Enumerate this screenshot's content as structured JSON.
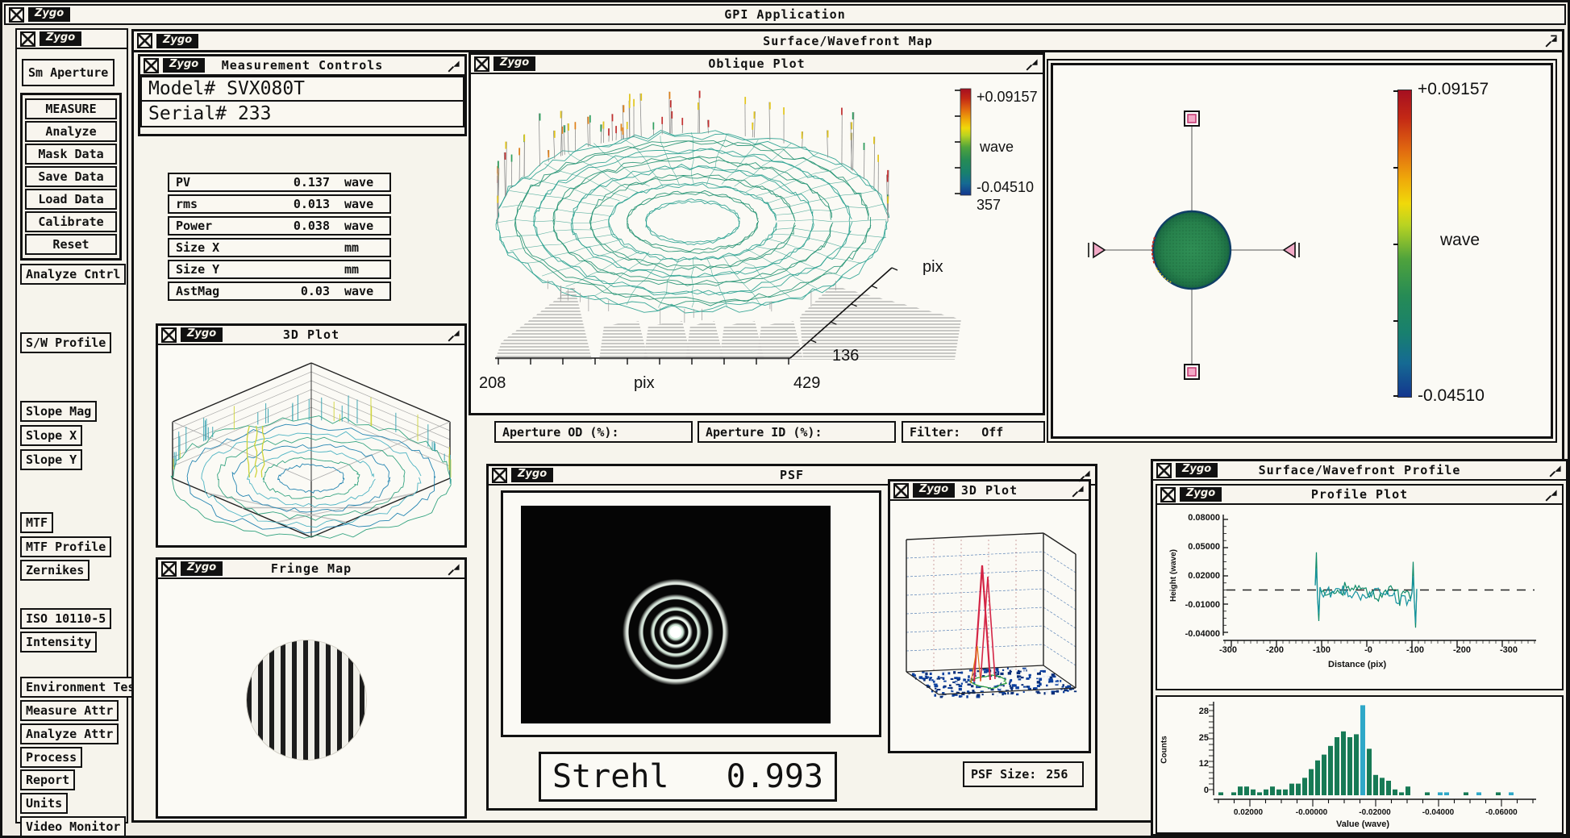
{
  "app": {
    "title": "GPI Application",
    "logo_text": "Zygo"
  },
  "sidebar": {
    "top_button": "Sm Aperture",
    "measure_group": [
      "MEASURE",
      "Analyze",
      "Mask Data",
      "Save Data",
      "Load Data",
      "Calibrate",
      "Reset"
    ],
    "singles": [
      "Analyze Cntrl",
      "S/W Profile",
      "Slope Mag",
      "Slope X",
      "Slope Y",
      "MTF",
      "MTF Profile",
      "Zernikes",
      "ISO 10110-5",
      "Intensity",
      "Environment Test",
      "Measure Attr",
      "Analyze Attr",
      "Process",
      "Report",
      "Units",
      "Video Monitor"
    ]
  },
  "surface_map": {
    "title": "Surface/Wavefront Map"
  },
  "measurement_controls": {
    "title": "Measurement Controls",
    "model_label": "Model#",
    "model_value": "SVX080T",
    "serial_label": "Serial#",
    "serial_value": "233",
    "stats": [
      {
        "name": "PV",
        "value": "0.137",
        "unit": "wave"
      },
      {
        "name": "rms",
        "value": "0.013",
        "unit": "wave"
      },
      {
        "name": "Power",
        "value": "0.038",
        "unit": "wave"
      },
      {
        "name": "Size X",
        "value": "",
        "unit": "mm"
      },
      {
        "name": "Size Y",
        "value": "",
        "unit": "mm"
      },
      {
        "name": "AstMag",
        "value": "0.03",
        "unit": "wave"
      }
    ]
  },
  "oblique": {
    "title": "Oblique Plot",
    "scale_max": "+0.09157",
    "scale_unit": "wave",
    "scale_min": "-0.04510",
    "rows": "357",
    "x_min": "208",
    "x_axis_label": "pix",
    "x_max": "429",
    "depth_tick": "136",
    "depth_axis_label": "pix"
  },
  "aperture": {
    "od_label": "Aperture OD (%):",
    "id_label": "Aperture ID (%):",
    "filter_label": "Filter:",
    "filter_value": "Off"
  },
  "map_panel": {
    "scale_max": "+0.09157",
    "scale_unit": "wave",
    "scale_min": "-0.04510"
  },
  "plot3d": {
    "title": "3D Plot"
  },
  "fringe": {
    "title": "Fringe Map"
  },
  "psf": {
    "title": "PSF",
    "plot3d_title": "3D Plot",
    "strehl_label": "Strehl",
    "strehl_value": "0.993",
    "size_label": "PSF Size:",
    "size_value": "256"
  },
  "profile": {
    "window_title": "Surface/Wavefront Profile",
    "plot_title": "Profile Plot",
    "ylabel": "Height (wave)",
    "xlabel": "Distance (pix)",
    "yticks": [
      "0.08000",
      "0.05000",
      "0.02000",
      "-0.01000",
      "-0.04000"
    ],
    "xticks": [
      "-300",
      "-200",
      "-100",
      "-0",
      "-100",
      "-200",
      "-300"
    ]
  },
  "histogram": {
    "ylabel": "Counts",
    "xlabel": "Value (wave)",
    "yticks": [
      "28",
      "25",
      "12",
      "0"
    ],
    "xticks": [
      "0.02000",
      "-0.00000",
      "-0.02000",
      "-0.04000",
      "-0.06000"
    ]
  },
  "colors": {
    "accent_black": "#111111",
    "paper": "#efece4",
    "trace1": "#0d8a68",
    "trace2": "#1693a0",
    "bar": "#177a55",
    "bar_spike": "#2fa8c8",
    "psf_peak": "#d42545",
    "scale_top": "#a50f20",
    "scale_bottom": "#14368e",
    "handle_pink": "#f2a9c6"
  },
  "chart_data": [
    {
      "id": "oblique-plot",
      "type": "heatmap",
      "title": "Oblique Plot",
      "colorbar": {
        "max": 0.09157,
        "min": -0.0451,
        "unit": "wave"
      },
      "x_ticks": [
        208,
        429
      ],
      "xlabel": "pix",
      "depth_ticks": [
        136
      ],
      "depth_label": "pix",
      "rows": 357
    },
    {
      "id": "surface-wavefront-map",
      "type": "heatmap",
      "colorbar": {
        "max": 0.09157,
        "min": -0.0451,
        "unit": "wave"
      }
    },
    {
      "id": "profile-plot",
      "type": "line",
      "xlabel": "Distance (pix)",
      "ylabel": "Height (wave)",
      "x_ticks": [
        -300,
        -200,
        -100,
        0,
        100,
        200,
        300
      ],
      "y_ticks": [
        0.08,
        0.05,
        0.02,
        -0.01,
        -0.04
      ],
      "ylim": [
        -0.04,
        0.08
      ],
      "x_data_extent": [
        -110,
        110
      ],
      "mean_line": 0.005,
      "series": [
        {
          "name": "profile-trace-1",
          "mean": 0.005,
          "left_spike_max": 0.045,
          "left_spike_min": -0.028,
          "right_spike_max": 0.035,
          "right_spike_min": -0.035
        },
        {
          "name": "profile-trace-2",
          "mean": 0.002,
          "left_spike_max": 0.028,
          "left_spike_min": -0.02,
          "right_spike_max": 0.02,
          "right_spike_min": -0.03
        }
      ],
      "grid": false,
      "legend": "none"
    },
    {
      "id": "height-histogram",
      "type": "bar",
      "xlabel": "Value (wave)",
      "ylabel": "Counts",
      "x_ticks": [
        0.02,
        -0.0,
        -0.02,
        -0.04,
        -0.06
      ],
      "y_ticks": [
        28,
        25,
        12,
        0
      ],
      "ylim": [
        0,
        31
      ],
      "values": [
        1,
        0,
        1,
        3,
        3,
        2,
        1,
        2,
        3,
        2,
        2,
        4,
        4,
        6,
        9,
        12,
        14,
        17,
        20,
        22,
        20,
        21,
        31,
        16,
        7,
        6,
        5,
        2,
        1,
        3,
        0,
        0,
        1,
        0,
        1,
        1,
        0,
        0,
        1,
        0,
        1,
        0,
        0,
        1,
        0,
        1
      ],
      "spike_indices": [
        22,
        34,
        35,
        40,
        45
      ]
    }
  ]
}
